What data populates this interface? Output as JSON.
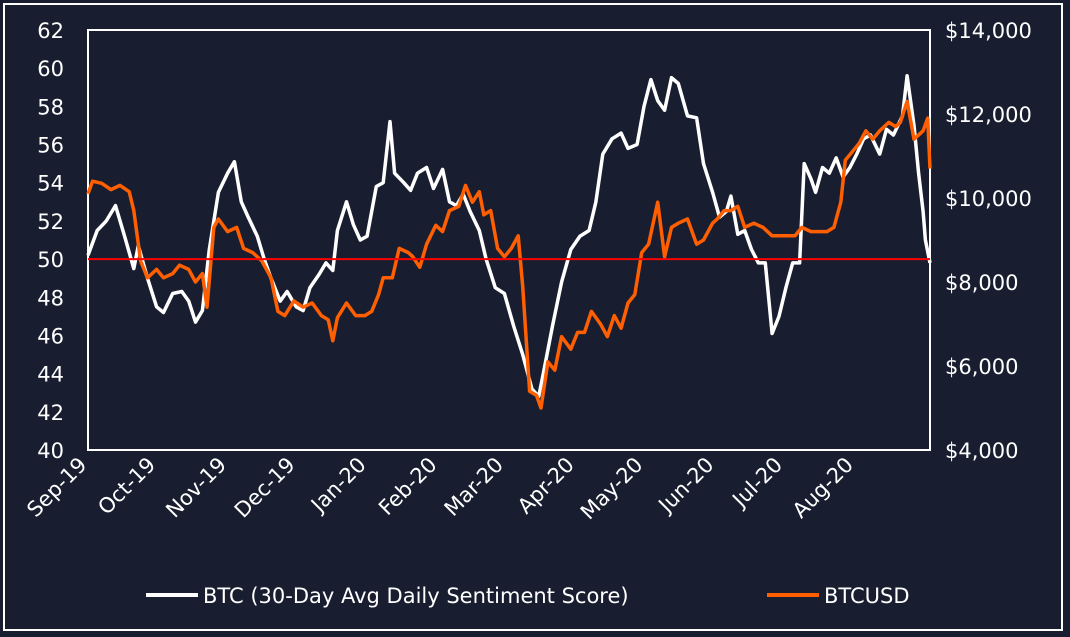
{
  "chart_data": {
    "type": "line",
    "title": "",
    "x_range": [
      "2019-09-01",
      "2020-09-03"
    ],
    "x_tick_labels": [
      "Sep-19",
      "Oct-19",
      "Nov-19",
      "Dec-19",
      "Jan-20",
      "Feb-20",
      "Mar-20",
      "Apr-20",
      "May-20",
      "Jun-20",
      "Jul-20",
      "Aug-20"
    ],
    "x_tick_dates": [
      "2019-09-01",
      "2019-10-01",
      "2019-11-01",
      "2019-12-01",
      "2020-01-01",
      "2020-02-01",
      "2020-03-01",
      "2020-04-01",
      "2020-05-01",
      "2020-06-01",
      "2020-07-01",
      "2020-08-01"
    ],
    "y_left": {
      "range": [
        40,
        62
      ],
      "ticks": [
        40,
        42,
        44,
        46,
        48,
        50,
        52,
        54,
        56,
        58,
        60,
        62
      ]
    },
    "y_right": {
      "range": [
        4000,
        14000
      ],
      "ticks": [
        4000,
        6000,
        8000,
        10000,
        12000,
        14000
      ],
      "tick_labels": [
        "$4,000",
        "$6,000",
        "$8,000",
        "$10,000",
        "$12,000",
        "$14,000"
      ]
    },
    "reference_line": {
      "axis": "left",
      "value": 50,
      "color": "#ff0000"
    },
    "legend_position": "bottom",
    "grid": false,
    "series": [
      {
        "name": "BTC (30-Day Avg Daily Sentiment Score)",
        "axis": "left",
        "color": "#ffffff",
        "points": [
          [
            "2019-09-01",
            50.2
          ],
          [
            "2019-09-05",
            51.5
          ],
          [
            "2019-09-09",
            52.0
          ],
          [
            "2019-09-13",
            52.8
          ],
          [
            "2019-09-17",
            51.2
          ],
          [
            "2019-09-21",
            49.5
          ],
          [
            "2019-09-23",
            50.7
          ],
          [
            "2019-09-27",
            49.0
          ],
          [
            "2019-10-01",
            47.5
          ],
          [
            "2019-10-04",
            47.2
          ],
          [
            "2019-10-08",
            48.2
          ],
          [
            "2019-10-12",
            48.3
          ],
          [
            "2019-10-15",
            47.8
          ],
          [
            "2019-10-18",
            46.7
          ],
          [
            "2019-10-21",
            47.3
          ],
          [
            "2019-10-24",
            50.5
          ],
          [
            "2019-10-28",
            53.5
          ],
          [
            "2019-11-01",
            54.5
          ],
          [
            "2019-11-04",
            55.1
          ],
          [
            "2019-11-07",
            53.0
          ],
          [
            "2019-11-10",
            52.2
          ],
          [
            "2019-11-14",
            51.2
          ],
          [
            "2019-11-17",
            50.0
          ],
          [
            "2019-11-20",
            49.0
          ],
          [
            "2019-11-24",
            47.8
          ],
          [
            "2019-11-27",
            48.3
          ],
          [
            "2019-12-01",
            47.5
          ],
          [
            "2019-12-04",
            47.3
          ],
          [
            "2019-12-07",
            48.5
          ],
          [
            "2019-12-11",
            49.2
          ],
          [
            "2019-12-14",
            49.8
          ],
          [
            "2019-12-17",
            49.4
          ],
          [
            "2019-12-19",
            51.5
          ],
          [
            "2019-12-23",
            53.0
          ],
          [
            "2019-12-26",
            51.8
          ],
          [
            "2019-12-29",
            51.0
          ],
          [
            "2020-01-01",
            51.2
          ],
          [
            "2020-01-05",
            53.8
          ],
          [
            "2020-01-08",
            54.0
          ],
          [
            "2020-01-11",
            57.2
          ],
          [
            "2020-01-13",
            54.5
          ],
          [
            "2020-01-17",
            54.0
          ],
          [
            "2020-01-20",
            53.6
          ],
          [
            "2020-01-23",
            54.5
          ],
          [
            "2020-01-27",
            54.8
          ],
          [
            "2020-01-30",
            53.7
          ],
          [
            "2020-02-03",
            54.7
          ],
          [
            "2020-02-06",
            53.0
          ],
          [
            "2020-02-09",
            52.8
          ],
          [
            "2020-02-12",
            53.4
          ],
          [
            "2020-02-15",
            52.5
          ],
          [
            "2020-02-19",
            51.5
          ],
          [
            "2020-02-22",
            50.0
          ],
          [
            "2020-02-26",
            48.5
          ],
          [
            "2020-03-01",
            48.2
          ],
          [
            "2020-03-05",
            46.5
          ],
          [
            "2020-03-09",
            45.0
          ],
          [
            "2020-03-13",
            43.2
          ],
          [
            "2020-03-16",
            42.8
          ],
          [
            "2020-03-18",
            44.0
          ],
          [
            "2020-03-22",
            46.5
          ],
          [
            "2020-03-26",
            48.8
          ],
          [
            "2020-03-30",
            50.5
          ],
          [
            "2020-04-03",
            51.2
          ],
          [
            "2020-04-07",
            51.5
          ],
          [
            "2020-04-10",
            53.0
          ],
          [
            "2020-04-13",
            55.5
          ],
          [
            "2020-04-17",
            56.3
          ],
          [
            "2020-04-21",
            56.6
          ],
          [
            "2020-04-24",
            55.8
          ],
          [
            "2020-04-28",
            56.0
          ],
          [
            "2020-05-01",
            58.0
          ],
          [
            "2020-05-04",
            59.4
          ],
          [
            "2020-05-07",
            58.3
          ],
          [
            "2020-05-10",
            57.8
          ],
          [
            "2020-05-13",
            59.5
          ],
          [
            "2020-05-16",
            59.2
          ],
          [
            "2020-05-20",
            57.5
          ],
          [
            "2020-05-24",
            57.4
          ],
          [
            "2020-05-27",
            55.0
          ],
          [
            "2020-05-31",
            53.5
          ],
          [
            "2020-06-03",
            52.2
          ],
          [
            "2020-06-06",
            52.5
          ],
          [
            "2020-06-08",
            53.3
          ],
          [
            "2020-06-11",
            51.3
          ],
          [
            "2020-06-14",
            51.5
          ],
          [
            "2020-06-17",
            50.5
          ],
          [
            "2020-06-20",
            49.8
          ],
          [
            "2020-06-23",
            49.8
          ],
          [
            "2020-06-26",
            46.1
          ],
          [
            "2020-06-29",
            47.0
          ],
          [
            "2020-07-02",
            48.5
          ],
          [
            "2020-07-05",
            49.8
          ],
          [
            "2020-07-08",
            49.8
          ],
          [
            "2020-07-10",
            55.0
          ],
          [
            "2020-07-13",
            54.2
          ],
          [
            "2020-07-15",
            53.5
          ],
          [
            "2020-07-18",
            54.8
          ],
          [
            "2020-07-21",
            54.5
          ],
          [
            "2020-07-24",
            55.3
          ],
          [
            "2020-07-27",
            54.3
          ],
          [
            "2020-07-30",
            54.8
          ],
          [
            "2020-08-02",
            55.5
          ],
          [
            "2020-08-05",
            56.3
          ],
          [
            "2020-08-08",
            56.5
          ],
          [
            "2020-08-12",
            55.5
          ],
          [
            "2020-08-15",
            56.8
          ],
          [
            "2020-08-18",
            56.5
          ],
          [
            "2020-08-22",
            57.5
          ],
          [
            "2020-08-24",
            59.6
          ],
          [
            "2020-08-27",
            57.0
          ],
          [
            "2020-08-29",
            54.5
          ],
          [
            "2020-08-31",
            52.5
          ],
          [
            "2020-09-01",
            51.0
          ],
          [
            "2020-09-03",
            49.8
          ]
        ]
      },
      {
        "name": "BTCUSD",
        "axis": "right",
        "color": "#ff5f00",
        "points": [
          [
            "2019-09-01",
            10100
          ],
          [
            "2019-09-03",
            10400
          ],
          [
            "2019-09-07",
            10350
          ],
          [
            "2019-09-11",
            10200
          ],
          [
            "2019-09-15",
            10300
          ],
          [
            "2019-09-19",
            10150
          ],
          [
            "2019-09-21",
            9700
          ],
          [
            "2019-09-24",
            8500
          ],
          [
            "2019-09-27",
            8100
          ],
          [
            "2019-10-01",
            8300
          ],
          [
            "2019-10-04",
            8100
          ],
          [
            "2019-10-08",
            8200
          ],
          [
            "2019-10-11",
            8400
          ],
          [
            "2019-10-15",
            8300
          ],
          [
            "2019-10-18",
            8000
          ],
          [
            "2019-10-21",
            8200
          ],
          [
            "2019-10-23",
            7400
          ],
          [
            "2019-10-26",
            9300
          ],
          [
            "2019-10-28",
            9500
          ],
          [
            "2019-11-01",
            9200
          ],
          [
            "2019-11-05",
            9300
          ],
          [
            "2019-11-08",
            8800
          ],
          [
            "2019-11-12",
            8700
          ],
          [
            "2019-11-16",
            8500
          ],
          [
            "2019-11-20",
            8100
          ],
          [
            "2019-11-23",
            7300
          ],
          [
            "2019-11-26",
            7200
          ],
          [
            "2019-11-30",
            7550
          ],
          [
            "2019-12-04",
            7400
          ],
          [
            "2019-12-08",
            7500
          ],
          [
            "2019-12-12",
            7200
          ],
          [
            "2019-12-15",
            7100
          ],
          [
            "2019-12-17",
            6600
          ],
          [
            "2019-12-19",
            7150
          ],
          [
            "2019-12-23",
            7500
          ],
          [
            "2019-12-27",
            7200
          ],
          [
            "2019-12-31",
            7200
          ],
          [
            "2020-01-03",
            7300
          ],
          [
            "2020-01-06",
            7700
          ],
          [
            "2020-01-08",
            8100
          ],
          [
            "2020-01-12",
            8100
          ],
          [
            "2020-01-15",
            8800
          ],
          [
            "2020-01-19",
            8700
          ],
          [
            "2020-01-21",
            8600
          ],
          [
            "2020-01-24",
            8350
          ],
          [
            "2020-01-27",
            8900
          ],
          [
            "2020-01-31",
            9350
          ],
          [
            "2020-02-03",
            9200
          ],
          [
            "2020-02-06",
            9700
          ],
          [
            "2020-02-10",
            9800
          ],
          [
            "2020-02-13",
            10300
          ],
          [
            "2020-02-16",
            9900
          ],
          [
            "2020-02-19",
            10150
          ],
          [
            "2020-02-21",
            9600
          ],
          [
            "2020-02-24",
            9700
          ],
          [
            "2020-02-27",
            8800
          ],
          [
            "2020-03-01",
            8600
          ],
          [
            "2020-03-04",
            8800
          ],
          [
            "2020-03-07",
            9100
          ],
          [
            "2020-03-09",
            7900
          ],
          [
            "2020-03-12",
            5400
          ],
          [
            "2020-03-15",
            5300
          ],
          [
            "2020-03-17",
            5000
          ],
          [
            "2020-03-20",
            6100
          ],
          [
            "2020-03-23",
            5900
          ],
          [
            "2020-03-26",
            6700
          ],
          [
            "2020-03-30",
            6400
          ],
          [
            "2020-04-02",
            6800
          ],
          [
            "2020-04-05",
            6800
          ],
          [
            "2020-04-08",
            7300
          ],
          [
            "2020-04-12",
            7000
          ],
          [
            "2020-04-15",
            6700
          ],
          [
            "2020-04-18",
            7200
          ],
          [
            "2020-04-21",
            6900
          ],
          [
            "2020-04-24",
            7500
          ],
          [
            "2020-04-27",
            7700
          ],
          [
            "2020-04-30",
            8700
          ],
          [
            "2020-05-03",
            8900
          ],
          [
            "2020-05-07",
            9900
          ],
          [
            "2020-05-10",
            8600
          ],
          [
            "2020-05-13",
            9300
          ],
          [
            "2020-05-16",
            9400
          ],
          [
            "2020-05-20",
            9500
          ],
          [
            "2020-05-24",
            8900
          ],
          [
            "2020-05-27",
            9000
          ],
          [
            "2020-05-31",
            9400
          ],
          [
            "2020-06-02",
            9500
          ],
          [
            "2020-06-05",
            9700
          ],
          [
            "2020-06-08",
            9700
          ],
          [
            "2020-06-11",
            9800
          ],
          [
            "2020-06-14",
            9300
          ],
          [
            "2020-06-18",
            9400
          ],
          [
            "2020-06-22",
            9300
          ],
          [
            "2020-06-26",
            9100
          ],
          [
            "2020-06-29",
            9100
          ],
          [
            "2020-07-02",
            9100
          ],
          [
            "2020-07-06",
            9100
          ],
          [
            "2020-07-09",
            9300
          ],
          [
            "2020-07-13",
            9200
          ],
          [
            "2020-07-16",
            9200
          ],
          [
            "2020-07-20",
            9200
          ],
          [
            "2020-07-23",
            9300
          ],
          [
            "2020-07-26",
            9900
          ],
          [
            "2020-07-28",
            10900
          ],
          [
            "2020-07-31",
            11100
          ],
          [
            "2020-08-03",
            11300
          ],
          [
            "2020-08-06",
            11600
          ],
          [
            "2020-08-09",
            11400
          ],
          [
            "2020-08-12",
            11600
          ],
          [
            "2020-08-16",
            11800
          ],
          [
            "2020-08-19",
            11700
          ],
          [
            "2020-08-21",
            11800
          ],
          [
            "2020-08-24",
            12300
          ],
          [
            "2020-08-27",
            11400
          ],
          [
            "2020-08-31",
            11600
          ],
          [
            "2020-09-02",
            11900
          ],
          [
            "2020-09-03",
            10700
          ]
        ]
      }
    ]
  }
}
